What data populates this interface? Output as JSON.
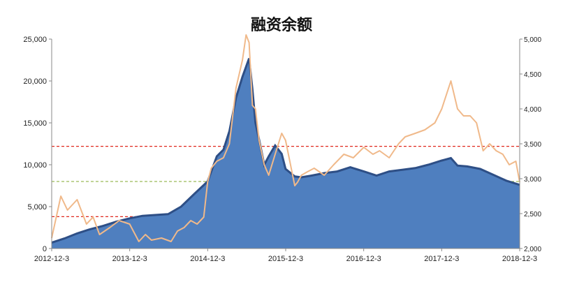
{
  "chart_data": {
    "type": "area",
    "title": "融资余额",
    "xlabel": "",
    "ylabel": "",
    "y2label": "",
    "x_tick_labels": [
      "2012-12-3",
      "2013-12-3",
      "2014-12-3",
      "2015-12-3",
      "2016-12-3",
      "2017-12-3",
      "2018-12-3"
    ],
    "ylim": [
      0,
      25000
    ],
    "y_ticks": [
      "0",
      "5,000",
      "10,000",
      "15,000",
      "20,000",
      "25,000"
    ],
    "y2lim": [
      2000,
      5000
    ],
    "y2_ticks": [
      "2,000",
      "2,500",
      "3,000",
      "3,500",
      "4,000",
      "4,500",
      "5,000"
    ],
    "grid": false,
    "colors": {
      "area_fill": "#4f7fbf",
      "area_edge": "#2e4f86",
      "line": "#f0b98a",
      "ref_red": "#e0281e",
      "ref_green": "#9bbb59"
    },
    "series": [
      {
        "axis": "left",
        "x": [
          "2012-12-03",
          "2013-02-01",
          "2013-04-01",
          "2013-06-01",
          "2013-08-01",
          "2013-10-01",
          "2013-12-03",
          "2014-02-01",
          "2014-04-01",
          "2014-06-01",
          "2014-08-01",
          "2014-10-01",
          "2014-12-03",
          "2015-01-15",
          "2015-02-15",
          "2015-03-15",
          "2015-04-15",
          "2015-05-15",
          "2015-06-15",
          "2015-07-01",
          "2015-07-15",
          "2015-08-01",
          "2015-08-25",
          "2015-09-15",
          "2015-10-15",
          "2015-11-15",
          "2015-12-03",
          "2016-01-15",
          "2016-02-15",
          "2016-04-01",
          "2016-06-01",
          "2016-08-01",
          "2016-10-01",
          "2016-12-03",
          "2017-02-01",
          "2017-04-01",
          "2017-06-01",
          "2017-08-01",
          "2017-10-01",
          "2017-12-03",
          "2018-01-15",
          "2018-02-15",
          "2018-04-01",
          "2018-06-01",
          "2018-08-01",
          "2018-10-01",
          "2018-12-03"
        ],
        "values": [
          700,
          1200,
          1800,
          2300,
          2700,
          3200,
          3600,
          3900,
          4000,
          4100,
          5000,
          6500,
          8000,
          11000,
          11800,
          14000,
          18000,
          20500,
          22700,
          19000,
          15000,
          13000,
          10000,
          11000,
          12300,
          11300,
          9500,
          8600,
          8500,
          8700,
          9000,
          9200,
          9700,
          9200,
          8700,
          9200,
          9400,
          9600,
          10000,
          10500,
          10800,
          9900,
          9800,
          9500,
          8800,
          8100,
          7600
        ]
      },
      {
        "axis": "right",
        "x": [
          "2012-12-03",
          "2013-01-15",
          "2013-02-15",
          "2013-04-01",
          "2013-05-15",
          "2013-06-15",
          "2013-07-15",
          "2013-09-01",
          "2013-10-15",
          "2013-12-03",
          "2014-01-15",
          "2014-02-15",
          "2014-03-15",
          "2014-05-01",
          "2014-06-15",
          "2014-07-15",
          "2014-08-15",
          "2014-09-15",
          "2014-10-15",
          "2014-11-15",
          "2014-12-03",
          "2014-12-20",
          "2015-01-15",
          "2015-02-15",
          "2015-03-15",
          "2015-04-15",
          "2015-05-15",
          "2015-06-01",
          "2015-06-15",
          "2015-07-01",
          "2015-07-15",
          "2015-08-01",
          "2015-08-25",
          "2015-09-15",
          "2015-10-15",
          "2015-11-15",
          "2015-12-03",
          "2016-01-15",
          "2016-01-28",
          "2016-02-15",
          "2016-03-15",
          "2016-04-15",
          "2016-06-01",
          "2016-07-15",
          "2016-09-01",
          "2016-10-15",
          "2016-12-03",
          "2017-01-15",
          "2017-02-15",
          "2017-04-01",
          "2017-05-15",
          "2017-06-15",
          "2017-08-01",
          "2017-09-15",
          "2017-11-01",
          "2017-12-03",
          "2018-01-15",
          "2018-02-15",
          "2018-03-15",
          "2018-04-15",
          "2018-05-15",
          "2018-06-15",
          "2018-07-15",
          "2018-08-15",
          "2018-09-15",
          "2018-10-15",
          "2018-11-15",
          "2018-12-03"
        ],
        "values": [
          2150,
          2750,
          2550,
          2700,
          2350,
          2450,
          2200,
          2300,
          2400,
          2350,
          2100,
          2200,
          2120,
          2150,
          2100,
          2250,
          2300,
          2400,
          2350,
          2450,
          2950,
          3150,
          3250,
          3300,
          3500,
          4300,
          4700,
          5100,
          4950,
          4050,
          4000,
          3550,
          3200,
          3050,
          3350,
          3650,
          3550,
          2900,
          2950,
          3050,
          3100,
          3150,
          3050,
          3200,
          3350,
          3300,
          3450,
          3350,
          3400,
          3300,
          3500,
          3600,
          3650,
          3700,
          3800,
          4000,
          4400,
          4000,
          3900,
          3900,
          3800,
          3400,
          3500,
          3400,
          3350,
          3200,
          3250,
          2950
        ]
      }
    ],
    "reference_lines": [
      {
        "axis": "left",
        "value": 12200,
        "color": "red",
        "style": "dashed"
      },
      {
        "axis": "left",
        "value": 8000,
        "color": "green",
        "style": "dashed"
      },
      {
        "axis": "left",
        "value": 3800,
        "color": "red",
        "style": "dashed"
      }
    ]
  }
}
